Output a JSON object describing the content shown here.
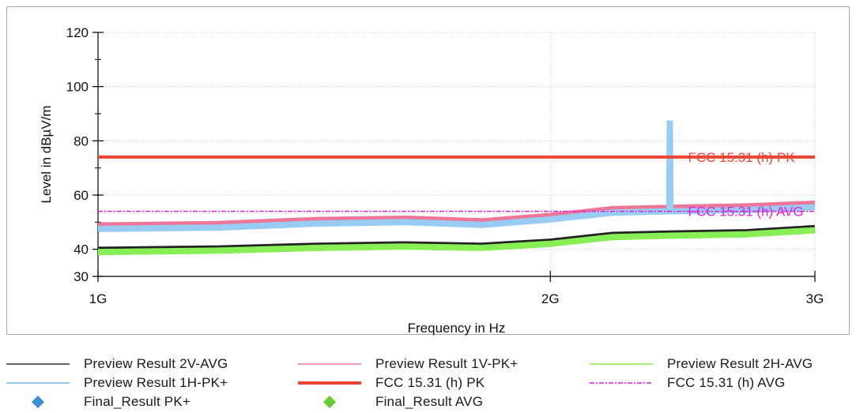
{
  "chart_data": {
    "type": "line",
    "title": "",
    "xlabel": "Frequency in Hz",
    "ylabel": "Level in dBµV/m",
    "xscale": "log",
    "xlim": [
      1000000000,
      3000000000
    ],
    "ylim": [
      30,
      120
    ],
    "x_ticks": [
      {
        "value": 1000000000,
        "label": "1G"
      },
      {
        "value": 2000000000,
        "label": "2G"
      },
      {
        "value": 3000000000,
        "label": "3G"
      }
    ],
    "y_ticks": [
      30,
      40,
      60,
      80,
      100,
      120
    ],
    "grid": true,
    "series": [
      {
        "name": "Preview Result 2V-AVG",
        "style": "line",
        "color": "#222222",
        "x": [
          1000000000,
          1200000000,
          1400000000,
          1600000000,
          1800000000,
          2000000000,
          2200000000,
          2400000000,
          2700000000,
          3000000000
        ],
        "y": [
          39.5,
          40.0,
          41.0,
          41.5,
          41.0,
          42.5,
          45.0,
          45.5,
          46.0,
          47.5
        ]
      },
      {
        "name": "Preview Result 1V-PK+",
        "style": "line",
        "color": "#ee7799",
        "x": [
          1000000000,
          1200000000,
          1400000000,
          1600000000,
          1800000000,
          2000000000,
          2200000000,
          2400000000,
          2700000000,
          3000000000
        ],
        "y": [
          48.5,
          49.0,
          50.5,
          51.0,
          50.0,
          52.0,
          54.5,
          55.0,
          55.5,
          56.5
        ]
      },
      {
        "name": "Preview Result 2H-AVG",
        "style": "line",
        "color": "#88ee55",
        "x": [
          1000000000,
          1200000000,
          1400000000,
          1600000000,
          1800000000,
          2000000000,
          2200000000,
          2400000000,
          2700000000,
          3000000000
        ],
        "y": [
          39.0,
          39.5,
          40.5,
          41.0,
          40.5,
          42.0,
          44.5,
          45.0,
          45.5,
          47.0
        ]
      },
      {
        "name": "Preview Result 1H-PK+",
        "style": "line",
        "color": "#99ccf2",
        "x": [
          1000000000,
          1200000000,
          1400000000,
          1600000000,
          1800000000,
          2000000000,
          2200000000,
          2400000000,
          2402000000,
          2404000000,
          2700000000,
          3000000000
        ],
        "y": [
          47.5,
          48.0,
          49.5,
          50.0,
          49.0,
          51.0,
          53.5,
          54.0,
          87.5,
          54.0,
          54.5,
          55.5
        ]
      },
      {
        "name": "FCC 15.31 (h) PK",
        "style": "limit",
        "color": "#ee4433",
        "x": [
          1000000000,
          3000000000
        ],
        "y": [
          74,
          74
        ]
      },
      {
        "name": "FCC 15.31 (h) AVG",
        "style": "limit-dashdot",
        "color": "#dd22dd",
        "x": [
          1000000000,
          3000000000
        ],
        "y": [
          54,
          54
        ]
      },
      {
        "name": "Final_Result PK+",
        "style": "marker",
        "color": "#3a8fd8",
        "x": [],
        "y": []
      },
      {
        "name": "Final_Result AVG",
        "style": "marker",
        "color": "#66cc33",
        "x": [],
        "y": []
      }
    ],
    "annotations": [
      {
        "text": "FCC 15.31 (h) PK",
        "color": "#ee4433",
        "x": 2500000000,
        "y": 74
      },
      {
        "text": "FCC 15.31 (h) AVG",
        "color": "#dd22dd",
        "x": 2500000000,
        "y": 54
      }
    ],
    "legend_position": "bottom"
  },
  "legend": [
    {
      "label": "Preview Result 2V-AVG",
      "kind": "line",
      "color": "#333333"
    },
    {
      "label": "Preview Result 1V-PK+",
      "kind": "line",
      "color": "#ee7799"
    },
    {
      "label": "Preview Result 2H-AVG",
      "kind": "line",
      "color": "#88ee55"
    },
    {
      "label": "Preview Result 1H-PK+",
      "kind": "line",
      "color": "#99ccf2"
    },
    {
      "label": "FCC 15.31 (h) PK",
      "kind": "thick",
      "color": "#ee4433"
    },
    {
      "label": "FCC 15.31 (h) AVG",
      "kind": "dashdot",
      "color": "#dd22dd"
    },
    {
      "label": "Final_Result PK+",
      "kind": "diamond",
      "color": "#3a8fd8"
    },
    {
      "label": "Final_Result AVG",
      "kind": "diamond",
      "color": "#66cc33"
    }
  ]
}
